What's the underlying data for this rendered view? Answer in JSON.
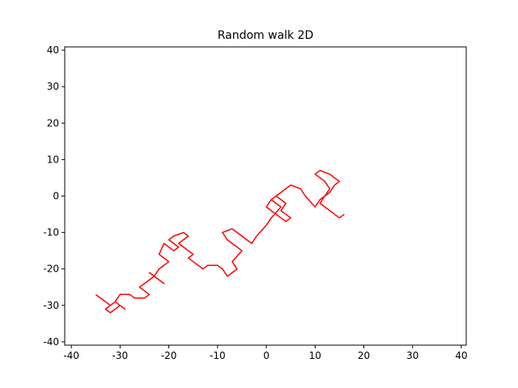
{
  "chart_data": {
    "type": "line",
    "title": "Random walk 2D",
    "color": "#ff0000",
    "x": [
      -35,
      -32,
      -31,
      -33,
      -32,
      -30,
      -29,
      -31,
      -30,
      -28,
      -27,
      -25,
      -24,
      -26,
      -25,
      -23,
      -24,
      -22,
      -21,
      -23,
      -22,
      -20,
      -22,
      -21,
      -19,
      -18,
      -20,
      -19,
      -17,
      -16,
      -18,
      -17,
      -15,
      -16,
      -14,
      -13,
      -12,
      -10,
      -9,
      -8,
      -6,
      -7,
      -5,
      -8,
      -9,
      -7,
      -5,
      -3,
      -2,
      0,
      1,
      3,
      1,
      2,
      4,
      3,
      5,
      4,
      2,
      0,
      1,
      3,
      5,
      7,
      8,
      10,
      11,
      13,
      14,
      15,
      13,
      11,
      10,
      12,
      13,
      12,
      11,
      13,
      15,
      16
    ],
    "y": [
      -27,
      -30,
      -29,
      -31,
      -32,
      -30,
      -31,
      -29,
      -27,
      -27,
      -28,
      -28,
      -27,
      -25,
      -24,
      -22,
      -21,
      -23,
      -24,
      -22,
      -20,
      -18,
      -16,
      -13,
      -15,
      -14,
      -12,
      -11,
      -10,
      -11,
      -13,
      -14,
      -16,
      -17,
      -19,
      -20,
      -19,
      -19,
      -20,
      -22,
      -20,
      -18,
      -15,
      -12,
      -10,
      -9,
      -11,
      -13,
      -11,
      -8,
      -6,
      -3,
      -1,
      0,
      -2,
      -4,
      -6,
      -7,
      -5,
      -3,
      -1,
      1,
      3,
      2,
      0,
      -3,
      -1,
      1,
      3,
      4,
      6,
      7,
      6,
      4,
      2,
      0,
      -2,
      -4,
      -6,
      -5
    ],
    "xlim": [
      -41.35,
      41.0
    ],
    "ylim": [
      -40.9,
      40.9
    ],
    "xticks": [
      -40,
      -30,
      -20,
      -10,
      0,
      10,
      20,
      30,
      40
    ],
    "yticks": [
      -40,
      -30,
      -20,
      -10,
      0,
      10,
      20,
      30,
      40
    ]
  }
}
